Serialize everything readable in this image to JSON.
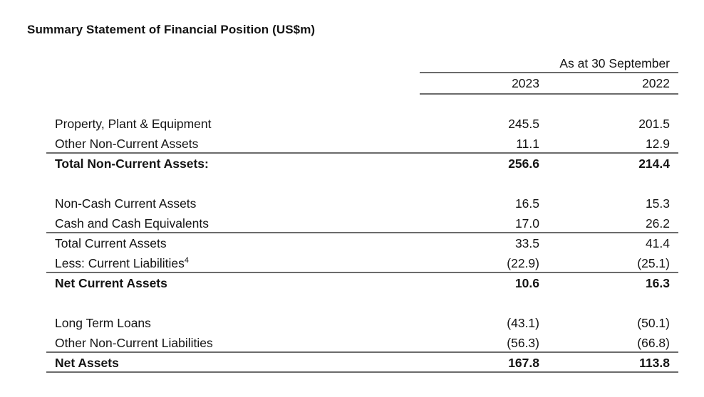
{
  "title": "Summary Statement of Financial Position (US$m)",
  "colors": {
    "text": "#141414",
    "rule": "#6b6b6b",
    "background": "#ffffff"
  },
  "table": {
    "period_header": "As at 30 September",
    "year_columns": [
      "2023",
      "2022"
    ],
    "sections": [
      {
        "rows": [
          {
            "label": "Property, Plant & Equipment",
            "values": [
              "245.5",
              "201.5"
            ]
          },
          {
            "label": "Other Non-Current Assets",
            "values": [
              "11.1",
              "12.9"
            ]
          },
          {
            "label": "Total Non-Current Assets:",
            "values": [
              "256.6",
              "214.4"
            ]
          }
        ]
      },
      {
        "rows": [
          {
            "label": "Non-Cash Current Assets",
            "values": [
              "16.5",
              "15.3"
            ]
          },
          {
            "label": "Cash and Cash Equivalents",
            "values": [
              "17.0",
              "26.2"
            ]
          },
          {
            "label": "Total Current Assets",
            "values": [
              "33.5",
              "41.4"
            ]
          },
          {
            "label": "Less: Current Liabilities",
            "footnote": "4",
            "values": [
              "(22.9)",
              "(25.1)"
            ]
          },
          {
            "label": "Net Current Assets",
            "values": [
              "10.6",
              "16.3"
            ]
          }
        ]
      },
      {
        "rows": [
          {
            "label": "Long Term Loans",
            "values": [
              "(43.1)",
              "(50.1)"
            ]
          },
          {
            "label": "Other Non-Current Liabilities",
            "values": [
              "(56.3)",
              "(66.8)"
            ]
          },
          {
            "label": "Net Assets",
            "values": [
              "167.8",
              "113.8"
            ]
          }
        ]
      }
    ]
  }
}
